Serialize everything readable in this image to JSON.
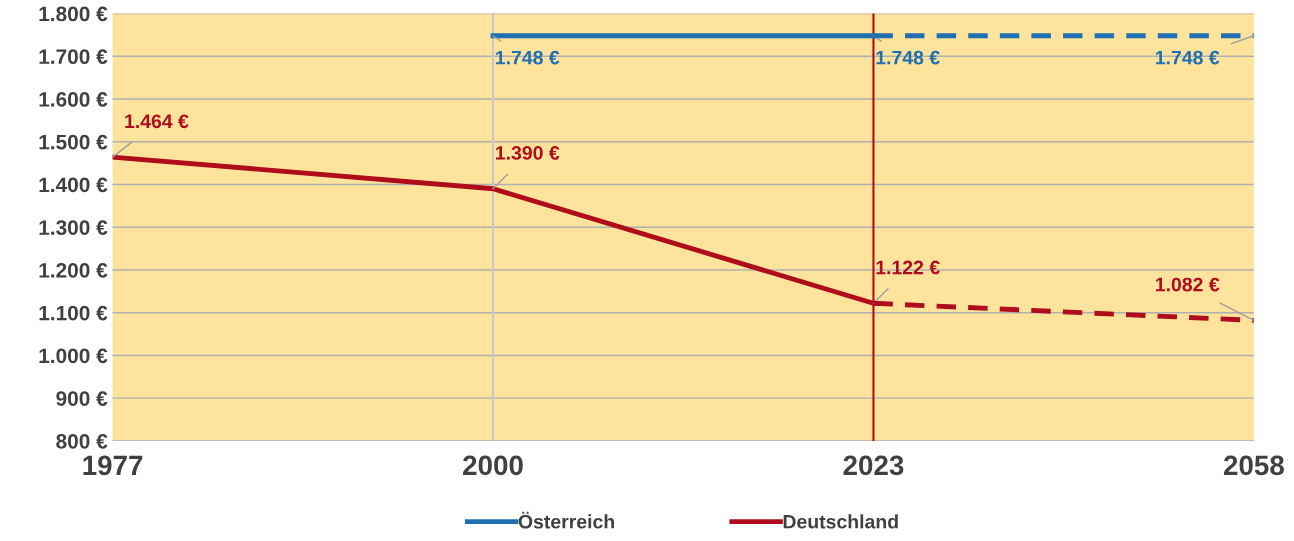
{
  "chart_data": {
    "type": "line",
    "categories": [
      "1977",
      "2000",
      "2023",
      "2058"
    ],
    "series": [
      {
        "name": "Österreich",
        "color": "#1f6fb2",
        "values": [
          null,
          1748,
          1748,
          null
        ],
        "value_labels": [
          null,
          "1.748 €",
          "1.748 €",
          null
        ],
        "line_style": "solid"
      },
      {
        "color": "#1f6fb2",
        "values": [
          null,
          null,
          1748,
          1748
        ],
        "value_labels": [
          null,
          null,
          null,
          "1.748 €"
        ],
        "line_style": "dashed"
      },
      {
        "name": "Deutschland",
        "color": "#b00d1c",
        "values": [
          1464,
          1390,
          1122,
          null
        ],
        "value_labels": [
          "1.464 €",
          "1.390 €",
          "1.122 €",
          null
        ],
        "line_style": "solid"
      },
      {
        "color": "#b00d1c",
        "values": [
          null,
          null,
          1122,
          1082
        ],
        "value_labels": [
          null,
          null,
          null,
          "1.082 €"
        ],
        "line_style": "dashed"
      }
    ],
    "ylim": [
      800,
      1800
    ],
    "yticks": [
      {
        "value": 800,
        "label": "800 €"
      },
      {
        "value": 900,
        "label": "900 €"
      },
      {
        "value": 1000,
        "label": "1.000 €"
      },
      {
        "value": 1100,
        "label": "1.100 €"
      },
      {
        "value": 1200,
        "label": "1.200 €"
      },
      {
        "value": 1300,
        "label": "1.300 €"
      },
      {
        "value": 1400,
        "label": "1.400 €"
      },
      {
        "value": 1500,
        "label": "1.500 €"
      },
      {
        "value": 1600,
        "label": "1.600 €"
      },
      {
        "value": 1700,
        "label": "1.700 €"
      },
      {
        "value": 1800,
        "label": "1.800 €"
      }
    ],
    "ref_lines": [
      {
        "axis": "x",
        "value": "2000",
        "color": "#c8c8c8"
      },
      {
        "axis": "x",
        "value": "2023",
        "color": "#b00d1c"
      }
    ],
    "grid": "y",
    "legend": "bottom",
    "marker": "none"
  }
}
